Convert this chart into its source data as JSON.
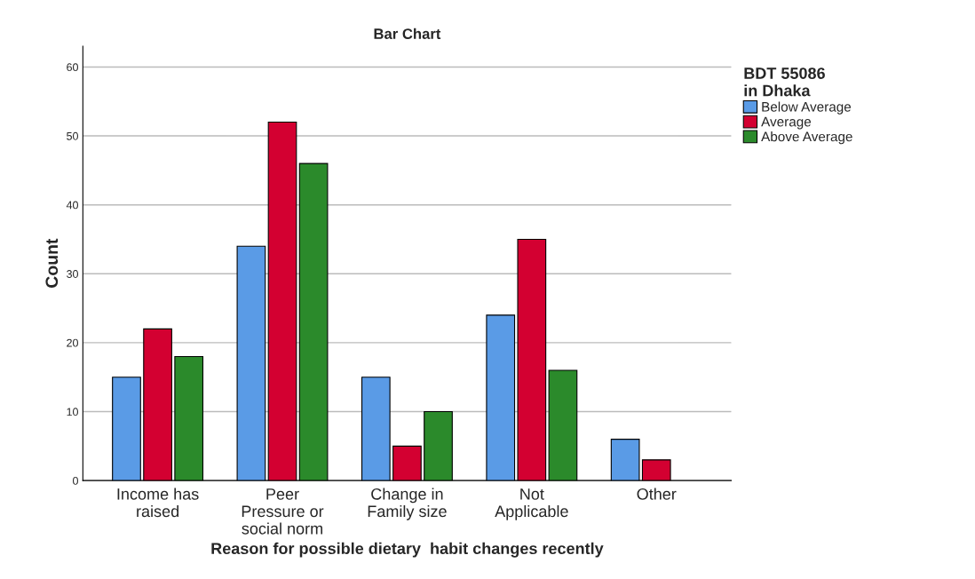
{
  "chart_data": {
    "type": "bar",
    "title": "Bar Chart",
    "xlabel": "Reason for possible dietary  habit changes recently",
    "ylabel": "Count",
    "legend_title": "BDT 55086\nin Dhaka",
    "categories": [
      "Income has\nraised",
      "Peer\nPressure or\nsocial norm",
      "Change in\nFamily size",
      "Not\nApplicable",
      "Other"
    ],
    "series": [
      {
        "name": "Below Average",
        "color": "#5a9be6",
        "values": [
          15,
          34,
          15,
          24,
          6
        ]
      },
      {
        "name": "Average",
        "color": "#d30031",
        "values": [
          22,
          52,
          5,
          35,
          3
        ]
      },
      {
        "name": "Above Average",
        "color": "#2b8a2b",
        "values": [
          18,
          46,
          10,
          16,
          null
        ]
      }
    ],
    "ylim": [
      0,
      63
    ],
    "yticks": [
      0,
      10,
      20,
      30,
      40,
      50,
      60
    ],
    "grid": "y",
    "legend": "top right"
  }
}
